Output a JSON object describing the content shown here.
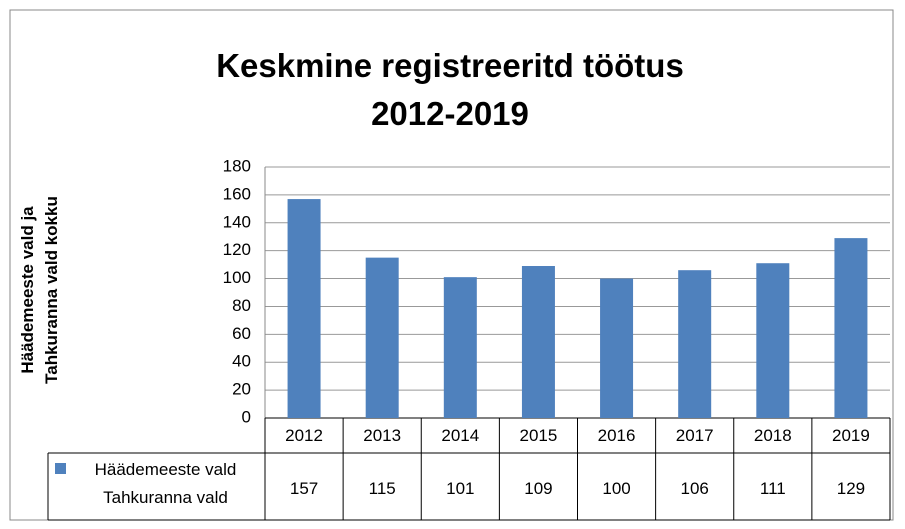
{
  "chart_data": {
    "type": "bar",
    "title": "Keskmine registreeritd töötus\n2012-2019",
    "y_label": "Häädemeeste vald ja\nTahkuranna vald kokku",
    "categories": [
      "2012",
      "2013",
      "2014",
      "2015",
      "2016",
      "2017",
      "2018",
      "2019"
    ],
    "series": [
      {
        "name": "Häädemeeste vald\nTahkuranna vald",
        "color": "#4f81bd",
        "values": [
          157,
          115,
          101,
          109,
          100,
          106,
          111,
          129
        ]
      }
    ],
    "ylim": [
      0,
      180
    ],
    "yticks": [
      0,
      20,
      40,
      60,
      80,
      100,
      120,
      140,
      160,
      180
    ],
    "grid": true
  }
}
